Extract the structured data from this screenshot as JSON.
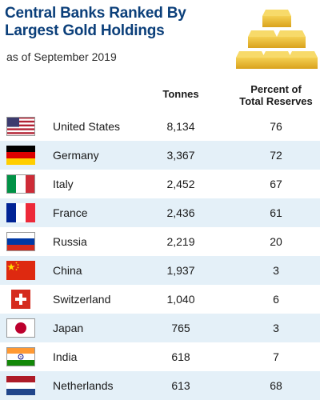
{
  "header": {
    "title": "Central Banks Ranked By\nLargest Gold Holdings",
    "subtitle": "as of September 2019"
  },
  "chart_data": {
    "type": "table",
    "title": "Central Banks Ranked By Largest Gold Holdings",
    "subtitle": "as of September 2019",
    "columns": [
      "Tonnes",
      "Percent of\nTotal Reserves"
    ],
    "rows": [
      {
        "country": "United States",
        "flag_icon": "us-flag-icon",
        "tonnes": "8,134",
        "percent": "76"
      },
      {
        "country": "Germany",
        "flag_icon": "germany-flag-icon",
        "tonnes": "3,367",
        "percent": "72"
      },
      {
        "country": "Italy",
        "flag_icon": "italy-flag-icon",
        "tonnes": "2,452",
        "percent": "67"
      },
      {
        "country": "France",
        "flag_icon": "france-flag-icon",
        "tonnes": "2,436",
        "percent": "61"
      },
      {
        "country": "Russia",
        "flag_icon": "russia-flag-icon",
        "tonnes": "2,219",
        "percent": "20"
      },
      {
        "country": "China",
        "flag_icon": "china-flag-icon",
        "tonnes": "1,937",
        "percent": "3"
      },
      {
        "country": "Switzerland",
        "flag_icon": "switzerland-flag-icon",
        "tonnes": "1,040",
        "percent": "6"
      },
      {
        "country": "Japan",
        "flag_icon": "japan-flag-icon",
        "tonnes": "765",
        "percent": "3"
      },
      {
        "country": "India",
        "flag_icon": "india-flag-icon",
        "tonnes": "618",
        "percent": "7"
      },
      {
        "country": "Netherlands",
        "flag_icon": "netherlands-flag-icon",
        "tonnes": "613",
        "percent": "68"
      }
    ]
  },
  "colors": {
    "title": "#0b3f7a",
    "row_shade": "#e4f0f8",
    "gold": "#e2b12a"
  }
}
